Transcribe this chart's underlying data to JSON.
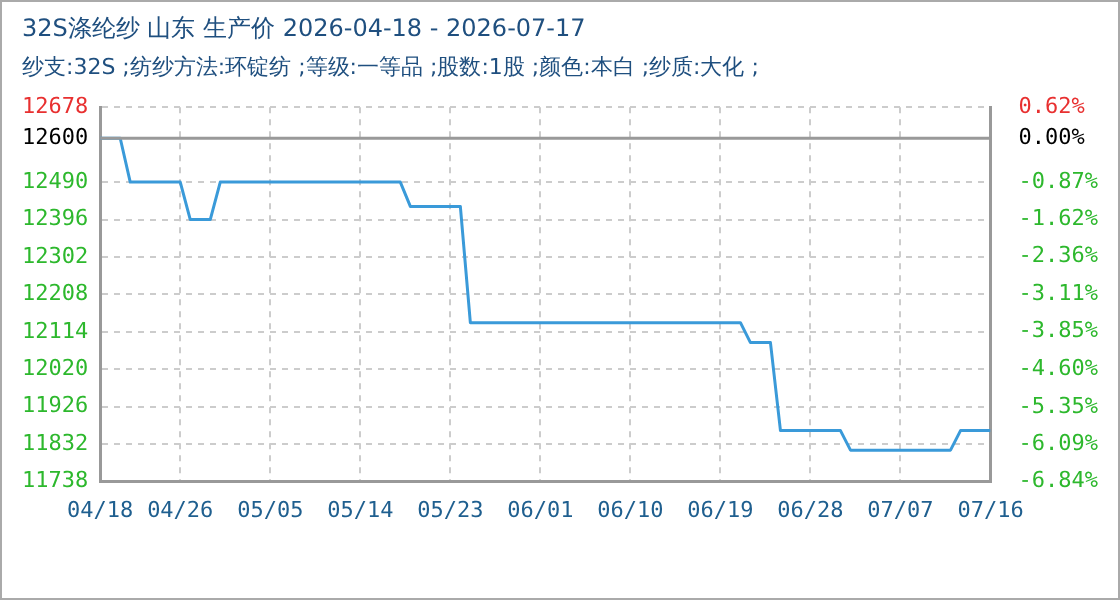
{
  "chart_data": {
    "type": "line",
    "title": "32S涤纶纱 山东 生产价 2026-04-18 - 2026-07-17",
    "subtitle": "纱支:32S ;纺纱方法:环锭纺 ;等级:一等品 ;股数:1股 ;颜色:本白 ;纱质:大化 ;",
    "x": [
      "2026-04-18",
      "2026-04-20",
      "2026-04-21",
      "2026-04-26",
      "2026-04-27",
      "2026-04-29",
      "2026-04-30",
      "2026-05-18",
      "2026-05-19",
      "2026-05-24",
      "2026-05-25",
      "2026-06-21",
      "2026-06-22",
      "2026-06-24",
      "2026-06-25",
      "2026-07-01",
      "2026-07-02",
      "2026-07-12",
      "2026-07-13",
      "2026-07-16"
    ],
    "series": [
      {
        "color": "#3a9ad9",
        "values": [
          12600,
          12600,
          12490,
          12490,
          12396,
          12396,
          12490,
          12490,
          12429,
          12429,
          12137,
          12137,
          12087,
          12087,
          11866,
          11866,
          11817,
          11817,
          11866,
          11866
        ]
      }
    ],
    "xlim": [
      "2026-04-18",
      "2026-07-16"
    ],
    "xticks": [
      {
        "value": "2026-04-18",
        "label": "04/18"
      },
      {
        "value": "2026-04-26",
        "label": "04/26"
      },
      {
        "value": "2026-05-05",
        "label": "05/05"
      },
      {
        "value": "2026-05-14",
        "label": "05/14"
      },
      {
        "value": "2026-05-23",
        "label": "05/23"
      },
      {
        "value": "2026-06-01",
        "label": "06/01"
      },
      {
        "value": "2026-06-10",
        "label": "06/10"
      },
      {
        "value": "2026-06-19",
        "label": "06/19"
      },
      {
        "value": "2026-06-28",
        "label": "06/28"
      },
      {
        "value": "2026-07-07",
        "label": "07/07"
      },
      {
        "value": "2026-07-16",
        "label": "07/16"
      }
    ],
    "ylim": [
      11738,
      12678
    ],
    "yticks": [
      11738,
      11832,
      11926,
      12020,
      12114,
      12208,
      12302,
      12396,
      12490,
      12600,
      12678
    ],
    "y2lim": [
      -6.84,
      0.62
    ],
    "y2ticks": [
      {
        "value": -6.84,
        "label": "-6.84%"
      },
      {
        "value": -6.09,
        "label": "-6.09%"
      },
      {
        "value": -5.35,
        "label": "-5.35%"
      },
      {
        "value": -4.6,
        "label": "-4.60%"
      },
      {
        "value": -3.85,
        "label": "-3.85%"
      },
      {
        "value": -3.11,
        "label": "-3.11%"
      },
      {
        "value": -2.36,
        "label": "-2.36%"
      },
      {
        "value": -1.62,
        "label": "-1.62%"
      },
      {
        "value": -0.87,
        "label": "-0.87%"
      },
      {
        "value": 0,
        "label": "0.00%"
      },
      {
        "value": 0.62,
        "label": "0.62%"
      }
    ],
    "ref_lines": [
      {
        "axis": "y",
        "value": 12600,
        "color": "#999999"
      }
    ],
    "grid": true,
    "legend": false,
    "marker": "none",
    "line_style": "solid"
  }
}
